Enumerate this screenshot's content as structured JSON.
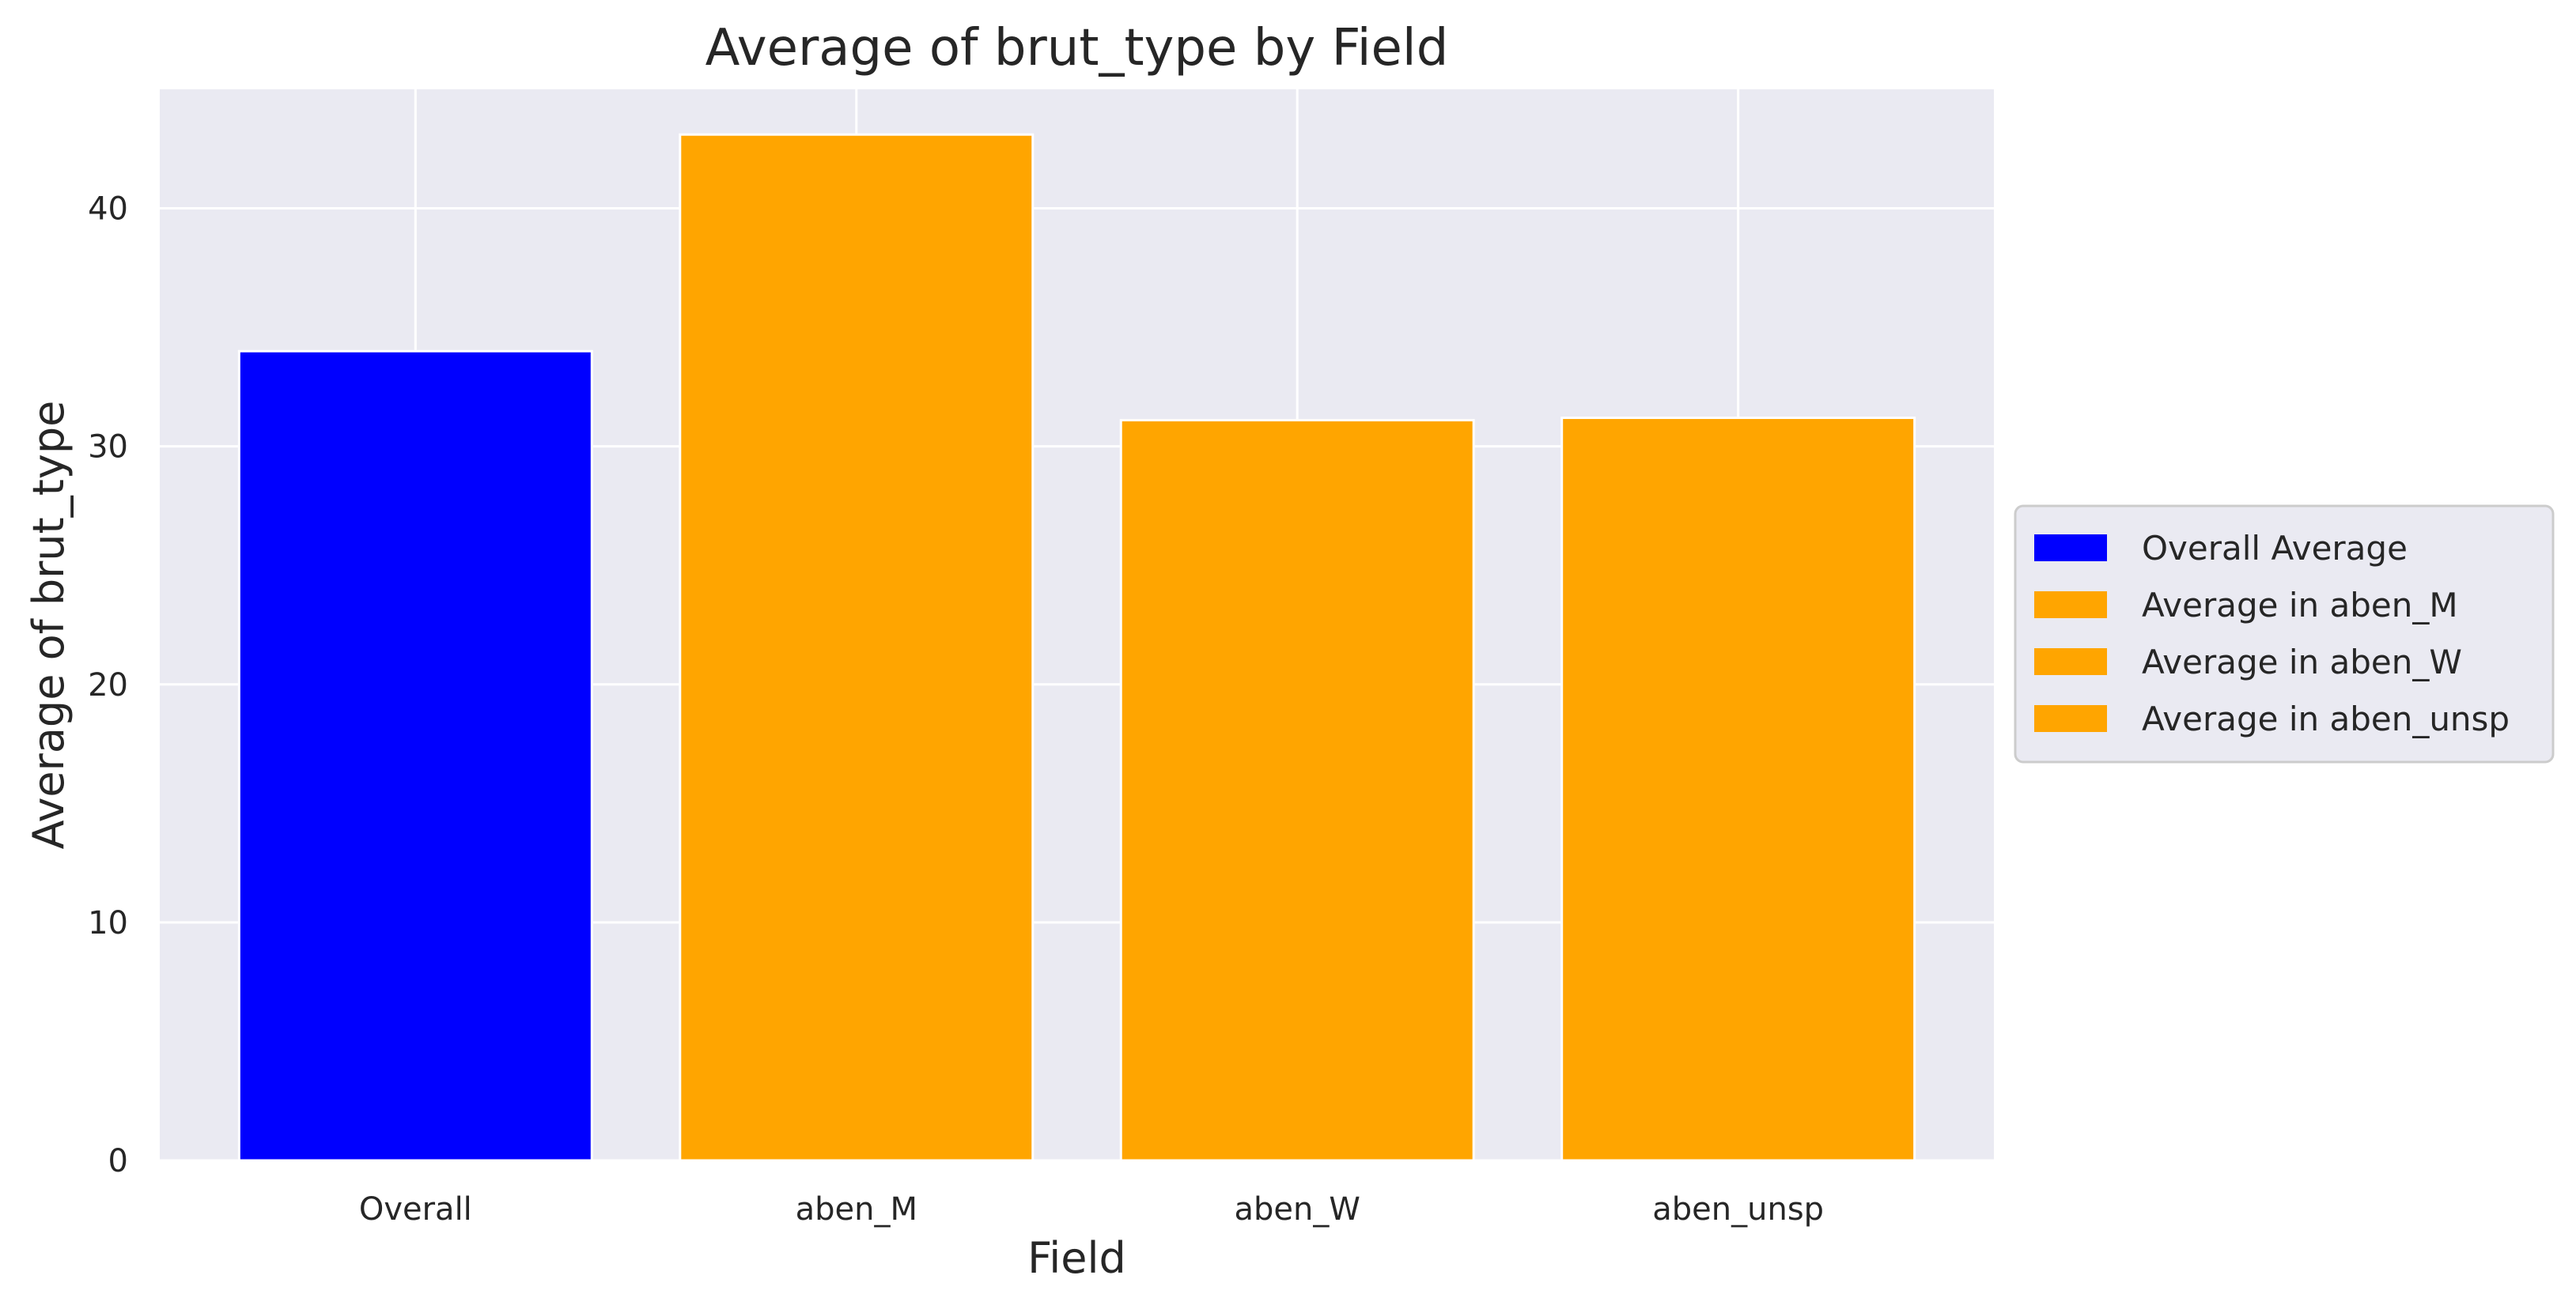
{
  "chart_data": {
    "type": "bar",
    "title": "Average of brut_type by Field",
    "xlabel": "Field",
    "ylabel": "Average of brut_type",
    "categories": [
      "Overall",
      "aben_M",
      "aben_W",
      "aben_unsp"
    ],
    "values": [
      34.0,
      43.1,
      31.1,
      31.2
    ],
    "bar_colors": [
      "#0000FF",
      "#FFA500",
      "#FFA500",
      "#FFA500"
    ],
    "ylim": [
      0,
      45
    ],
    "yticks": [
      0,
      10,
      20,
      30,
      40
    ],
    "grid": true,
    "legend_placement": "center-right-outside",
    "legend": [
      {
        "label": "Overall Average",
        "color": "#0000FF"
      },
      {
        "label": "Average in aben_M",
        "color": "#FFA500"
      },
      {
        "label": "Average in aben_W",
        "color": "#FFA500"
      },
      {
        "label": "Average in aben_unsp",
        "color": "#FFA500"
      }
    ],
    "plot_background": "#EAEAF2",
    "grid_color": "#FFFFFF"
  }
}
